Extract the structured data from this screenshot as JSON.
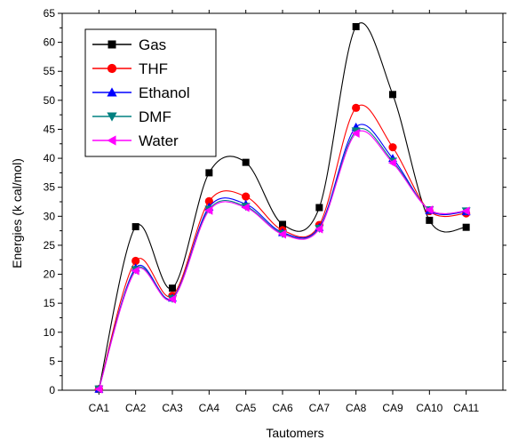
{
  "chart_data": {
    "type": "line",
    "title": "",
    "xlabel": "Tautomers",
    "ylabel": "Energies (k cal/mol)",
    "categories": [
      "CA1",
      "CA2",
      "CA3",
      "CA4",
      "CA5",
      "CA6",
      "CA7",
      "CA8",
      "CA9",
      "CA10",
      "CA11"
    ],
    "ylim": [
      0,
      65
    ],
    "yticks": [
      0,
      5,
      10,
      15,
      20,
      25,
      30,
      35,
      40,
      45,
      50,
      55,
      60,
      65
    ],
    "grid": false,
    "legend_position": "top-left",
    "series": [
      {
        "name": "Gas",
        "color": "#000000",
        "marker": "square",
        "values": [
          0.2,
          28.2,
          17.6,
          37.5,
          39.3,
          28.6,
          31.5,
          62.7,
          51.0,
          29.3,
          28.1
        ]
      },
      {
        "name": "THF",
        "color": "#ff0000",
        "marker": "circle",
        "values": [
          0.2,
          22.3,
          16.3,
          32.6,
          33.4,
          27.6,
          28.5,
          48.7,
          41.9,
          30.9,
          30.5
        ]
      },
      {
        "name": "Ethanol",
        "color": "#0000ff",
        "marker": "triangle-up",
        "values": [
          0.2,
          21.1,
          15.9,
          31.6,
          32.1,
          27.2,
          28.1,
          45.4,
          40.0,
          31.0,
          30.8
        ]
      },
      {
        "name": "DMF",
        "color": "#008080",
        "marker": "triangle-down",
        "values": [
          0.2,
          20.8,
          15.8,
          31.2,
          31.7,
          27.0,
          27.9,
          44.7,
          39.5,
          31.1,
          30.9
        ]
      },
      {
        "name": "Water",
        "color": "#ff00ff",
        "marker": "triangle-left",
        "values": [
          0.2,
          20.6,
          15.7,
          31.0,
          31.5,
          26.9,
          27.8,
          44.3,
          39.2,
          31.1,
          30.9
        ]
      }
    ]
  }
}
